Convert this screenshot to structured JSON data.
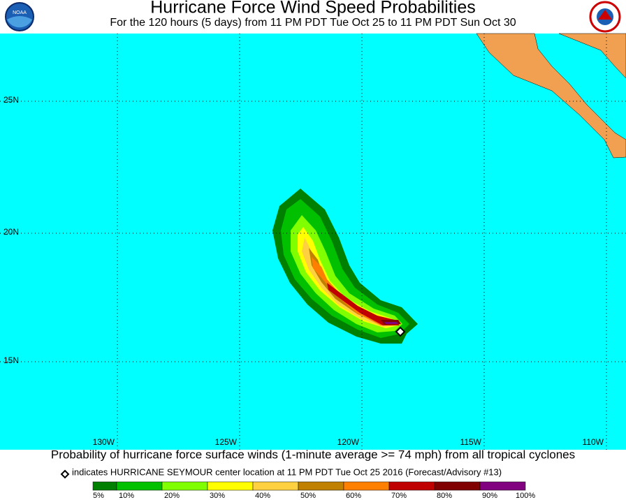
{
  "header": {
    "title": "Hurricane Force Wind Speed Probabilities",
    "subtitle": "For the 120 hours (5 days) from 11 PM PDT Tue Oct 25 to 11 PM PDT Sun Oct 30"
  },
  "map": {
    "lat_labels": [
      "25N",
      "20N",
      "15N"
    ],
    "lon_labels": [
      "130W",
      "125W",
      "120W",
      "115W",
      "110W"
    ]
  },
  "footer": {
    "caption": "Probability of hurricane force surface winds (1-minute average >= 74 mph) from all tropical cyclones",
    "note": "indicates HURRICANE SEYMOUR center location at 11 PM PDT Tue Oct 25 2016 (Forecast/Advisory #13)"
  },
  "legend": {
    "labels": [
      "5%",
      "10%",
      "20%",
      "30%",
      "40%",
      "50%",
      "60%",
      "70%",
      "80%",
      "90%",
      "100%"
    ],
    "colors": [
      "#008000",
      "#00c000",
      "#80ff00",
      "#ffff00",
      "#ffd040",
      "#c08000",
      "#ff8000",
      "#c00000",
      "#800000",
      "#800080"
    ]
  }
}
